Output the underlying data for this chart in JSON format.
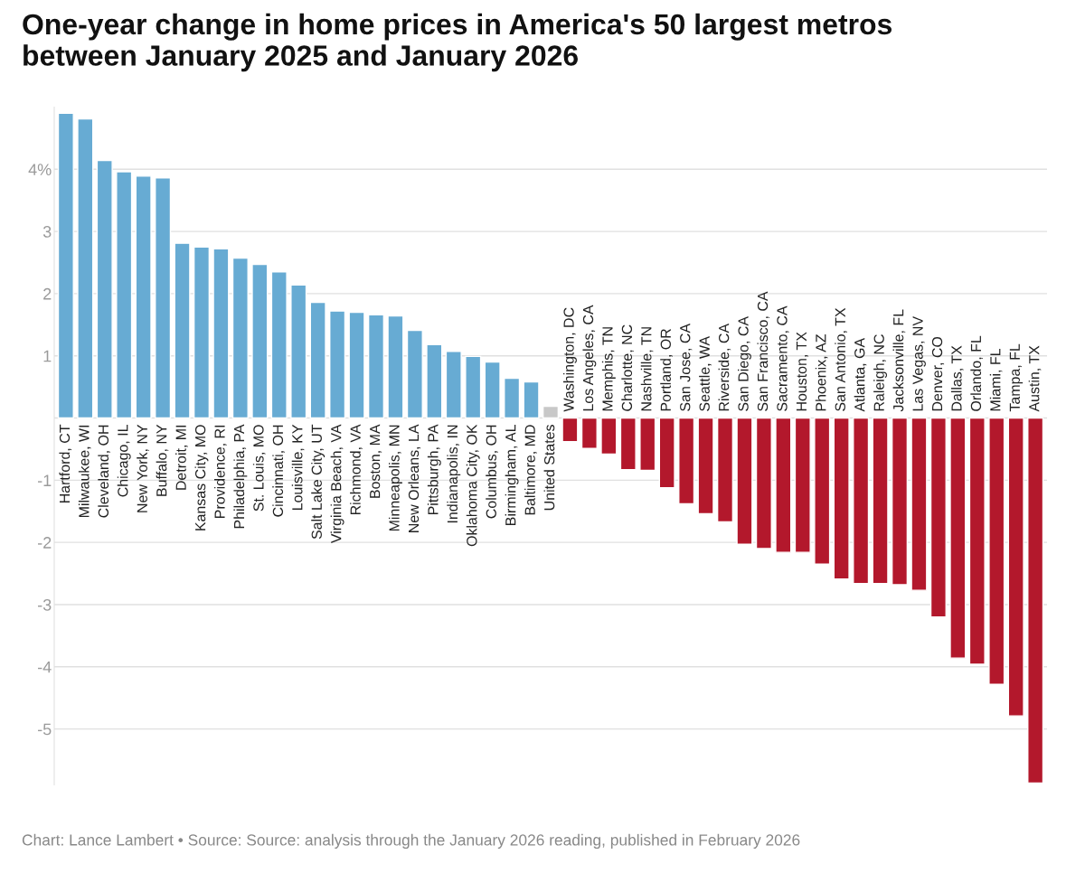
{
  "chart_data": {
    "type": "bar",
    "title": "One-year change in home prices in America's 50 largest metros\nbetween January 2025 and January 2026",
    "categories": [
      "Hartford, CT",
      "Milwaukee, WI",
      "Cleveland, OH",
      "Chicago, IL",
      "New York, NY",
      "Buffalo, NY",
      "Detroit, MI",
      "Kansas City, MO",
      "Providence, RI",
      "Philadelphia, PA",
      "St. Louis, MO",
      "Cincinnati, OH",
      "Louisville, KY",
      "Salt Lake City, UT",
      "Virginia Beach, VA",
      "Richmond, VA",
      "Boston, MA",
      "Minneapolis, MN",
      "New Orleans, LA",
      "Pittsburgh, PA",
      "Indianapolis, IN",
      "Oklahoma City, OK",
      "Columbus, OH",
      "Birmingham, AL",
      "Baltimore, MD",
      "United States",
      "Washington, DC",
      "Los Angeles, CA",
      "Memphis, TN",
      "Charlotte, NC",
      "Nashville, TN",
      "Portland, OR",
      "San Jose, CA",
      "Seattle, WA",
      "Riverside, CA",
      "San Diego, CA",
      "San Francisco, CA",
      "Sacramento, CA",
      "Houston, TX",
      "Phoenix, AZ",
      "San Antonio, TX",
      "Atlanta, GA",
      "Raleigh, NC",
      "Jacksonville, FL",
      "Las Vegas, NV",
      "Denver, CO",
      "Dallas, TX",
      "Orlando, FL",
      "Miami, FL",
      "Tampa, FL",
      "Austin, TX"
    ],
    "values": [
      4.9,
      4.81,
      4.14,
      3.96,
      3.89,
      3.86,
      2.81,
      2.75,
      2.72,
      2.57,
      2.47,
      2.35,
      2.14,
      1.86,
      1.72,
      1.7,
      1.66,
      1.64,
      1.41,
      1.18,
      1.07,
      0.99,
      0.9,
      0.64,
      0.58,
      0.19,
      -0.38,
      -0.49,
      -0.58,
      -0.83,
      -0.84,
      -1.12,
      -1.38,
      -1.54,
      -1.67,
      -2.03,
      -2.1,
      -2.16,
      -2.16,
      -2.35,
      -2.59,
      -2.66,
      -2.66,
      -2.68,
      -2.77,
      -3.2,
      -3.86,
      -3.96,
      -4.28,
      -4.79,
      -5.87
    ],
    "colors": [
      "#67abd3",
      "#67abd3",
      "#67abd3",
      "#67abd3",
      "#67abd3",
      "#67abd3",
      "#67abd3",
      "#67abd3",
      "#67abd3",
      "#67abd3",
      "#67abd3",
      "#67abd3",
      "#67abd3",
      "#67abd3",
      "#67abd3",
      "#67abd3",
      "#67abd3",
      "#67abd3",
      "#67abd3",
      "#67abd3",
      "#67abd3",
      "#67abd3",
      "#67abd3",
      "#67abd3",
      "#67abd3",
      "#c8c8c8",
      "#b3182c",
      "#b3182c",
      "#b3182c",
      "#b3182c",
      "#b3182c",
      "#b3182c",
      "#b3182c",
      "#b3182c",
      "#b3182c",
      "#b3182c",
      "#b3182c",
      "#b3182c",
      "#b3182c",
      "#b3182c",
      "#b3182c",
      "#b3182c",
      "#b3182c",
      "#b3182c",
      "#b3182c",
      "#b3182c",
      "#b3182c",
      "#b3182c",
      "#b3182c",
      "#b3182c",
      "#b3182c"
    ],
    "ylim": [
      -5.9,
      5.0
    ],
    "yticks": [
      {
        "value": 4,
        "label": "4%"
      },
      3,
      2,
      1,
      {
        "value": 0,
        "label": null
      },
      -1,
      -2,
      -3,
      -4,
      -5
    ],
    "grid": "y",
    "annotations": [
      "Chart: Lance Lambert • Source: Source: analysis through the January 2026 reading, published in February 2026"
    ]
  }
}
